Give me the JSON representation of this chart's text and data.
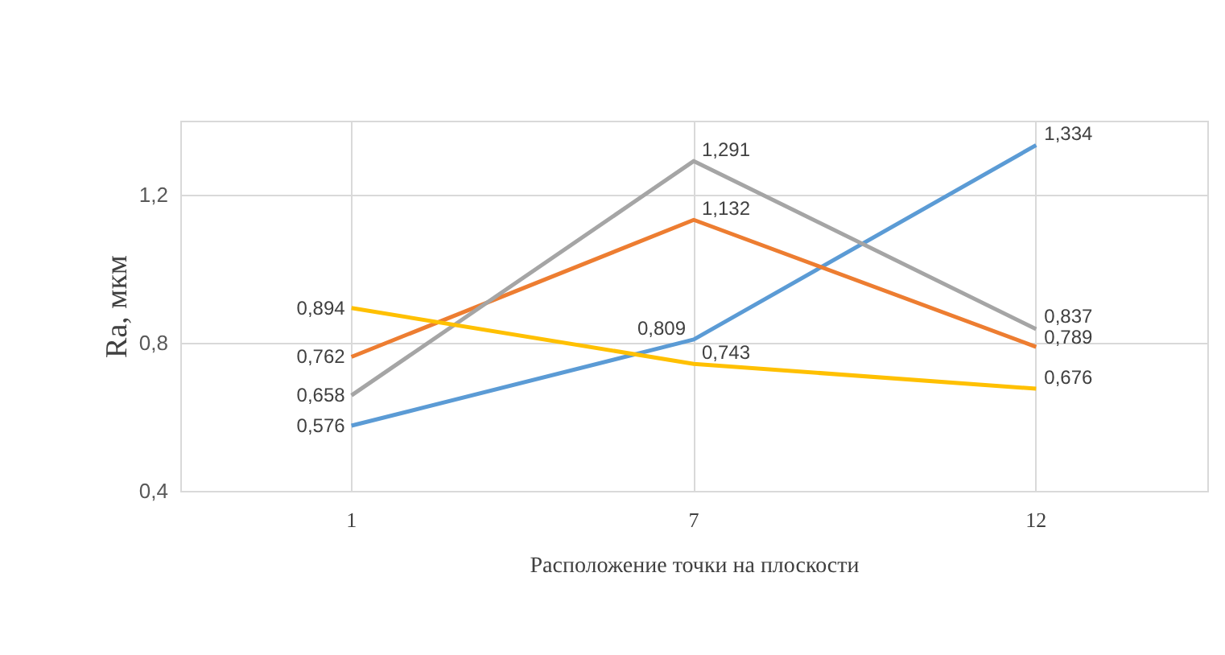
{
  "chart_data": {
    "type": "line",
    "xlabel": "Расположение точки на плоскости",
    "ylabel": "Ra, мкм",
    "categories": [
      "1",
      "7",
      "12"
    ],
    "series": [
      {
        "color": "#5b9bd5",
        "values": [
          0.576,
          0.809,
          1.334
        ],
        "value_labels": [
          "0,576",
          "0,809",
          "1,334"
        ]
      },
      {
        "color": "#ed7d31",
        "values": [
          0.762,
          1.132,
          0.789
        ],
        "value_labels": [
          "0,762",
          "1,132",
          "0,789"
        ]
      },
      {
        "color": "#a5a5a5",
        "values": [
          0.658,
          1.291,
          0.837
        ],
        "value_labels": [
          "0,658",
          "1,291",
          "0,837"
        ]
      },
      {
        "color": "#ffc000",
        "values": [
          0.894,
          0.743,
          0.676
        ],
        "value_labels": [
          "0,894",
          "0,743",
          "0,676"
        ]
      }
    ],
    "ylim": [
      0.4,
      1.4
    ],
    "yticks": [
      {
        "value": 0.4,
        "label": "0,4"
      },
      {
        "value": 0.8,
        "label": "0,8"
      },
      {
        "value": 1.2,
        "label": "1,2"
      }
    ],
    "grid": true,
    "marker": "none",
    "line_style": "solid"
  }
}
